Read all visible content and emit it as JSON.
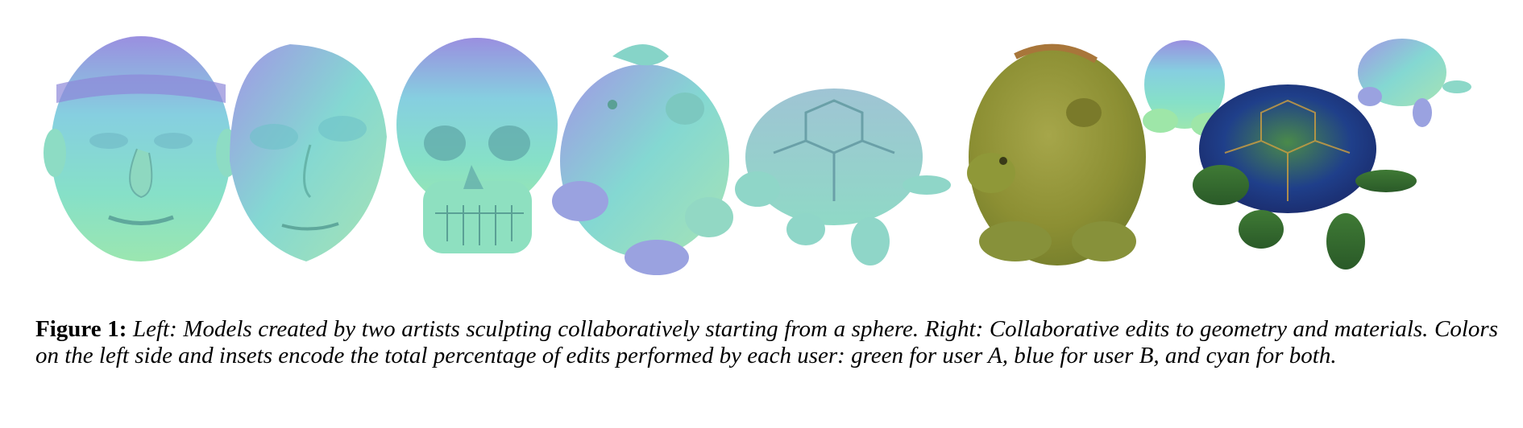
{
  "figure": {
    "label": "Figure 1:",
    "caption": " Left: Models created by two artists sculpting collaboratively starting from a sphere. Right: Collaborative edits to geometry and materials. Colors on the left side and insets encode the total percentage of edits performed by each user: green for user A, blue for user B, and cyan for both."
  },
  "colors": {
    "user_a": "#7ee0a0",
    "user_b": "#8f8ee0",
    "both": "#7fe3cf",
    "material_green": "#8f9a35",
    "material_blue": "#2c3fa8"
  },
  "models": [
    {
      "name": "old-man-head-model",
      "icon": "head-sculpt"
    },
    {
      "name": "alien-head-model",
      "icon": "head-sculpt"
    },
    {
      "name": "skull-model",
      "icon": "skull-sculpt"
    },
    {
      "name": "creature-model",
      "icon": "creature-sculpt"
    },
    {
      "name": "turtle-model",
      "icon": "turtle-sculpt"
    },
    {
      "name": "textured-creature-model",
      "icon": "creature-sculpt"
    },
    {
      "name": "creature-inset",
      "icon": "creature-sculpt"
    },
    {
      "name": "textured-turtle-model",
      "icon": "turtle-sculpt"
    },
    {
      "name": "turtle-inset",
      "icon": "turtle-sculpt"
    }
  ]
}
